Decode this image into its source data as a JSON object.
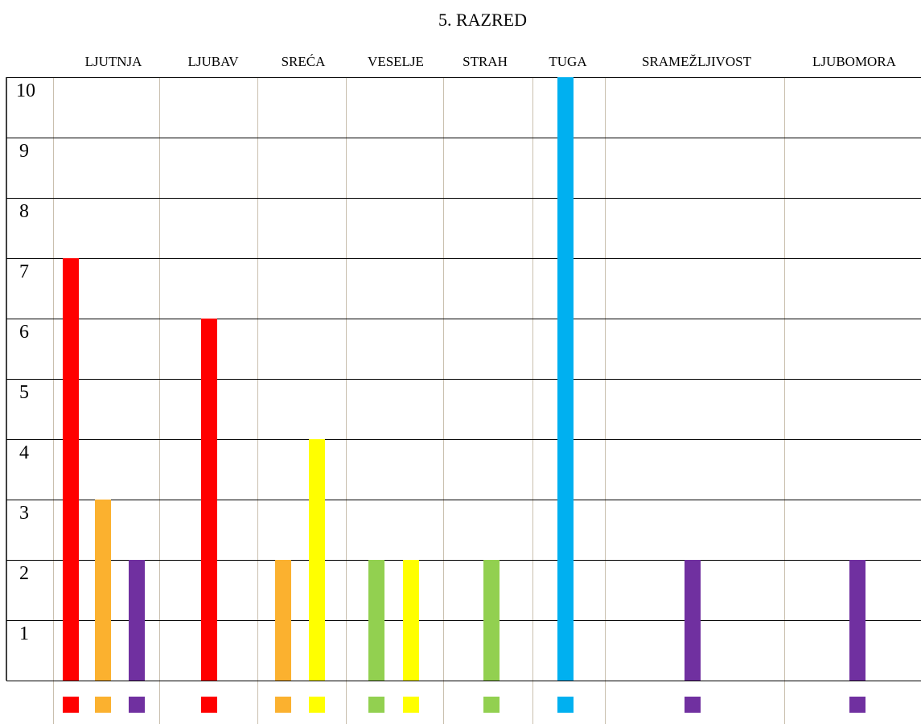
{
  "chart_data": {
    "type": "bar",
    "title": "5. RAZRED",
    "xlabel": "",
    "ylabel": "",
    "ylim": [
      0,
      10
    ],
    "yticks": [
      "1",
      "2",
      "3",
      "4",
      "5",
      "6",
      "7",
      "8",
      "9",
      "10"
    ],
    "grid": true,
    "legend": "none",
    "categories": [
      "LJUTNJA",
      "LJUBAV",
      "SREĆA",
      "VESELJE",
      "STRAH",
      "TUGA",
      "SRAMEŽLJIVOST",
      "LJUBOMORA"
    ],
    "bars": [
      {
        "category": "LJUTNJA",
        "value": 7,
        "color": "#ff0000"
      },
      {
        "category": "LJUTNJA",
        "value": 3,
        "color": "#fbb12f"
      },
      {
        "category": "LJUTNJA",
        "value": 2,
        "color": "#7030a0"
      },
      {
        "category": "LJUBAV",
        "value": 6,
        "color": "#ff0000"
      },
      {
        "category": "SREĆA",
        "value": 2,
        "color": "#fbb12f"
      },
      {
        "category": "SREĆA",
        "value": 4,
        "color": "#ffff00"
      },
      {
        "category": "VESELJE",
        "value": 2,
        "color": "#92d050"
      },
      {
        "category": "VESELJE",
        "value": 2,
        "color": "#ffff00"
      },
      {
        "category": "STRAH",
        "value": 2,
        "color": "#92d050"
      },
      {
        "category": "TUGA",
        "value": 10,
        "color": "#00b0f0"
      },
      {
        "category": "SRAMEŽLJIVOST",
        "value": 2,
        "color": "#7030a0"
      },
      {
        "category": "LJUBOMORA",
        "value": 2,
        "color": "#7030a0"
      }
    ]
  }
}
